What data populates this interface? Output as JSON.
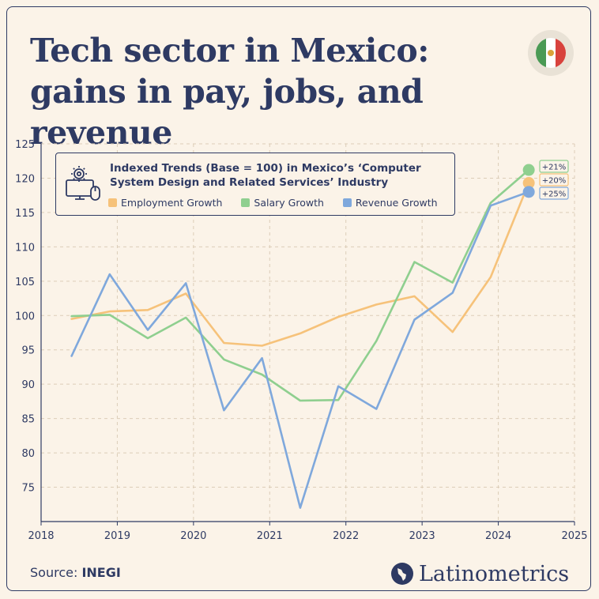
{
  "title": "Tech sector in Mexico: gains in pay, jobs, and revenue",
  "source_label": "Source:",
  "source_name": "INEGI",
  "brand": "Latinometrics",
  "colors": {
    "background": "#fbf3e8",
    "navy": "#2e3a63",
    "employment": "#f6c27a",
    "salary": "#8fcf8f",
    "revenue": "#7fa8dc"
  },
  "chart_data": {
    "type": "line",
    "title": "Indexed Trends (Base = 100) in Mexico’s ‘Computer System Design and Related Services’ Industry",
    "xlim": [
      2018,
      2025
    ],
    "ylim": [
      70,
      125
    ],
    "x_ticks": [
      "2018",
      "2019",
      "2020",
      "2021",
      "2022",
      "2023",
      "2024",
      "2025"
    ],
    "y_ticks": [
      "75",
      "80",
      "85",
      "90",
      "95",
      "100",
      "105",
      "110",
      "115",
      "120",
      "125"
    ],
    "grid": true,
    "legend_position": "top-left",
    "series": [
      {
        "name": "Employment Growth",
        "color": "#f6c27a",
        "end_label": "+20%",
        "points": [
          [
            2018.4,
            99.5
          ],
          [
            2018.9,
            100.6
          ],
          [
            2019.4,
            100.8
          ],
          [
            2019.9,
            103.2
          ],
          [
            2020.4,
            96.0
          ],
          [
            2020.9,
            95.6
          ],
          [
            2021.4,
            97.4
          ],
          [
            2021.9,
            99.8
          ],
          [
            2022.4,
            101.6
          ],
          [
            2022.9,
            102.8
          ],
          [
            2023.4,
            97.6
          ],
          [
            2023.9,
            105.6
          ],
          [
            2024.4,
            119.3
          ]
        ]
      },
      {
        "name": "Salary Growth",
        "color": "#8fcf8f",
        "end_label": "+21%",
        "points": [
          [
            2018.4,
            99.9
          ],
          [
            2018.9,
            100.1
          ],
          [
            2019.4,
            96.7
          ],
          [
            2019.9,
            99.7
          ],
          [
            2020.4,
            93.6
          ],
          [
            2020.9,
            91.4
          ],
          [
            2021.4,
            87.6
          ],
          [
            2021.9,
            87.7
          ],
          [
            2022.4,
            96.3
          ],
          [
            2022.9,
            107.8
          ],
          [
            2023.4,
            104.8
          ],
          [
            2023.9,
            116.4
          ],
          [
            2024.4,
            121.2
          ]
        ]
      },
      {
        "name": "Revenue Growth",
        "color": "#7fa8dc",
        "end_label": "+25%",
        "points": [
          [
            2018.4,
            94.1
          ],
          [
            2018.9,
            106.0
          ],
          [
            2019.4,
            97.9
          ],
          [
            2019.9,
            104.7
          ],
          [
            2020.4,
            86.2
          ],
          [
            2020.9,
            93.8
          ],
          [
            2021.4,
            72.0
          ],
          [
            2021.9,
            89.7
          ],
          [
            2022.4,
            86.4
          ],
          [
            2022.9,
            99.4
          ],
          [
            2023.4,
            103.3
          ],
          [
            2023.9,
            116.0
          ],
          [
            2024.4,
            118.0
          ]
        ]
      }
    ]
  }
}
